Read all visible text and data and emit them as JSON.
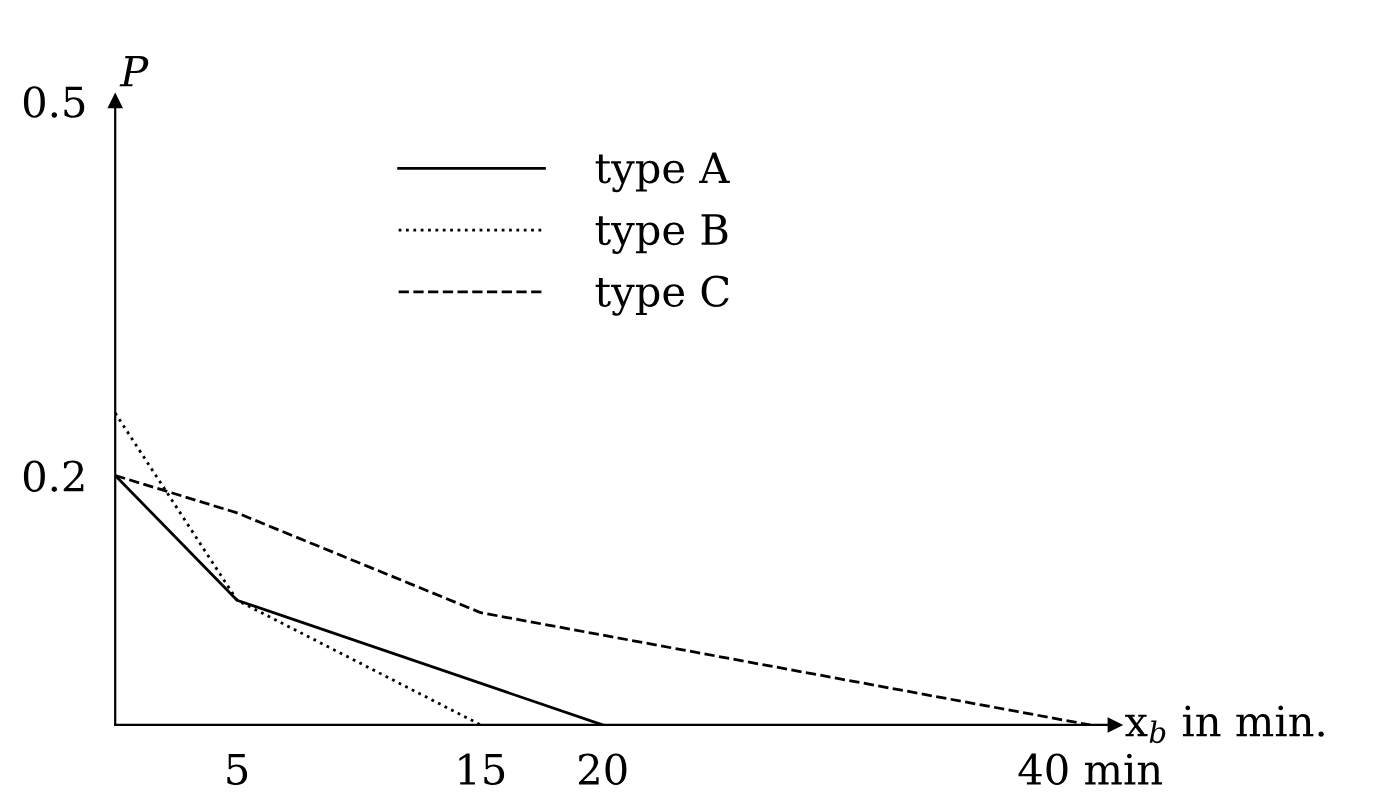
{
  "chart_data": {
    "type": "line",
    "xlabel": "x$_{b}$ in min.",
    "ylabel": "P",
    "xlim": [
      0,
      41
    ],
    "ylim": [
      0,
      0.5
    ],
    "xticks": [
      5,
      15,
      20,
      {
        "value": 40,
        "label": "40 min"
      }
    ],
    "yticks": [
      0.2,
      0.5
    ],
    "series": [
      {
        "name": "type A",
        "color": "#000000",
        "line_style": "solid",
        "x": [
          0,
          5,
          20
        ],
        "values": [
          0.2,
          0.1,
          0
        ]
      },
      {
        "name": "type B",
        "color": "#000000",
        "line_style": "dotted",
        "x": [
          0,
          5,
          15
        ],
        "values": [
          0.25,
          0.1,
          0
        ]
      },
      {
        "name": "type C",
        "color": "#000000",
        "line_style": "dashed",
        "x": [
          0,
          5,
          15,
          40
        ],
        "values": [
          0.2,
          0.17,
          0.09,
          0
        ]
      }
    ],
    "legend": "top",
    "grid": false,
    "marker": "none"
  }
}
